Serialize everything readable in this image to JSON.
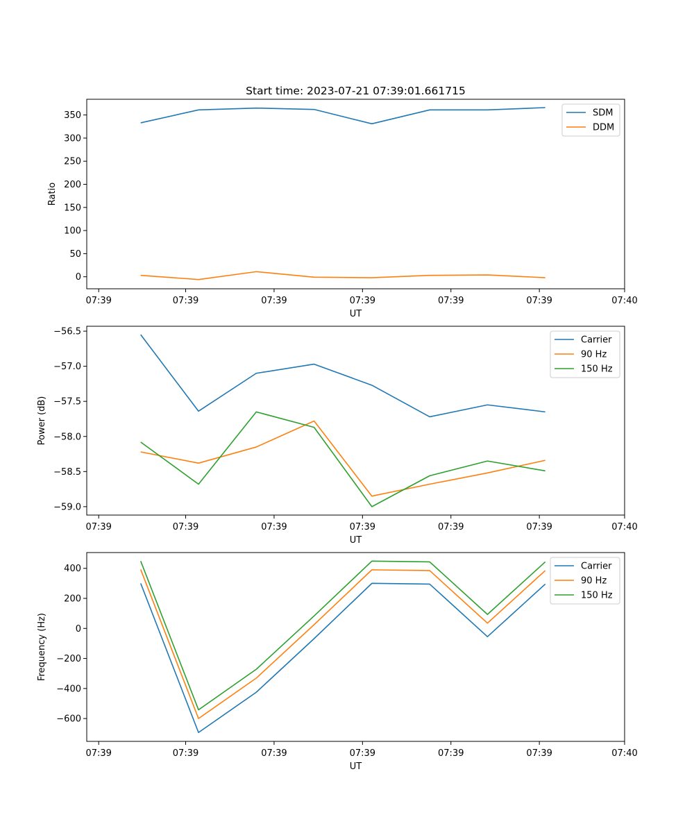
{
  "title": "Start time: 2023-07-21 07:39:01.661715",
  "colors": {
    "blue": "#1f77b4",
    "orange": "#ff7f0e",
    "green": "#2ca02c"
  },
  "chart_data": [
    {
      "type": "line",
      "ylabel": "Ratio",
      "xlabel": "UT",
      "ylim": [
        -26.0,
        384.0
      ],
      "yticks": [
        0,
        50,
        100,
        150,
        200,
        250,
        300,
        350
      ],
      "xlim": [
        0,
        1
      ],
      "xticks": [
        0.0222,
        0.1839,
        0.3483,
        0.5127,
        0.6771,
        0.8415,
        1.0
      ],
      "xtick_labels": [
        "07:39",
        "07:39",
        "07:39",
        "07:39",
        "07:39",
        "07:39",
        "07:40"
      ],
      "x": [
        0.1003,
        0.2078,
        0.3152,
        0.4227,
        0.5301,
        0.6376,
        0.745,
        0.8525
      ],
      "legend": "top-right",
      "series": [
        {
          "name": "SDM",
          "color": "#1f77b4",
          "values": [
            333,
            361,
            365,
            362,
            331,
            361,
            361,
            366
          ]
        },
        {
          "name": "DDM",
          "color": "#ff7f0e",
          "values": [
            3,
            -6,
            11,
            -1,
            -2,
            3,
            4,
            -2
          ]
        }
      ]
    },
    {
      "type": "line",
      "ylabel": "Power (dB)",
      "xlabel": "UT",
      "ylim": [
        -59.12,
        -56.43
      ],
      "yticks": [
        -59.0,
        -58.5,
        -58.0,
        -57.5,
        -57.0,
        -56.5
      ],
      "ytick_labels": [
        "−59.0",
        "−58.5",
        "−58.0",
        "−57.5",
        "−57.0",
        "−56.5"
      ],
      "xlim": [
        0,
        1
      ],
      "xticks": [
        0.0222,
        0.1839,
        0.3483,
        0.5127,
        0.6771,
        0.8415,
        1.0
      ],
      "xtick_labels": [
        "07:39",
        "07:39",
        "07:39",
        "07:39",
        "07:39",
        "07:39",
        "07:40"
      ],
      "x": [
        0.1003,
        0.2078,
        0.3152,
        0.4227,
        0.5301,
        0.6376,
        0.745,
        0.8525
      ],
      "legend": "top-right",
      "series": [
        {
          "name": "Carrier",
          "color": "#1f77b4",
          "values": [
            -56.55,
            -57.64,
            -57.1,
            -56.97,
            -57.27,
            -57.72,
            -57.55,
            -57.65
          ]
        },
        {
          "name": "90 Hz",
          "color": "#ff7f0e",
          "values": [
            -58.22,
            -58.38,
            -58.15,
            -57.78,
            -58.85,
            -58.68,
            -58.52,
            -58.34
          ]
        },
        {
          "name": "150 Hz",
          "color": "#2ca02c",
          "values": [
            -58.08,
            -58.68,
            -57.65,
            -57.87,
            -59.0,
            -58.56,
            -58.35,
            -58.49
          ]
        }
      ]
    },
    {
      "type": "line",
      "ylabel": "Frequency (Hz)",
      "xlabel": "UT",
      "ylim": [
        -752,
        505
      ],
      "yticks": [
        -600,
        -400,
        -200,
        0,
        200,
        400
      ],
      "ytick_labels": [
        "−600",
        "−400",
        "−200",
        "0",
        "200",
        "400"
      ],
      "xlim": [
        0,
        1
      ],
      "xticks": [
        0.0222,
        0.1839,
        0.3483,
        0.5127,
        0.6771,
        0.8415,
        1.0
      ],
      "xtick_labels": [
        "07:39",
        "07:39",
        "07:39",
        "07:39",
        "07:39",
        "07:39",
        "07:40"
      ],
      "x": [
        0.1003,
        0.2078,
        0.3152,
        0.4227,
        0.5301,
        0.6376,
        0.745,
        0.8525
      ],
      "legend": "top-right",
      "series": [
        {
          "name": "Carrier",
          "color": "#1f77b4",
          "values": [
            300,
            -693,
            -425,
            -68,
            300,
            295,
            -55,
            295
          ]
        },
        {
          "name": "90 Hz",
          "color": "#ff7f0e",
          "values": [
            392,
            -600,
            -331,
            25,
            390,
            385,
            35,
            385
          ]
        },
        {
          "name": "150 Hz",
          "color": "#2ca02c",
          "values": [
            448,
            -542,
            -272,
            83,
            448,
            443,
            93,
            443
          ]
        }
      ]
    }
  ]
}
